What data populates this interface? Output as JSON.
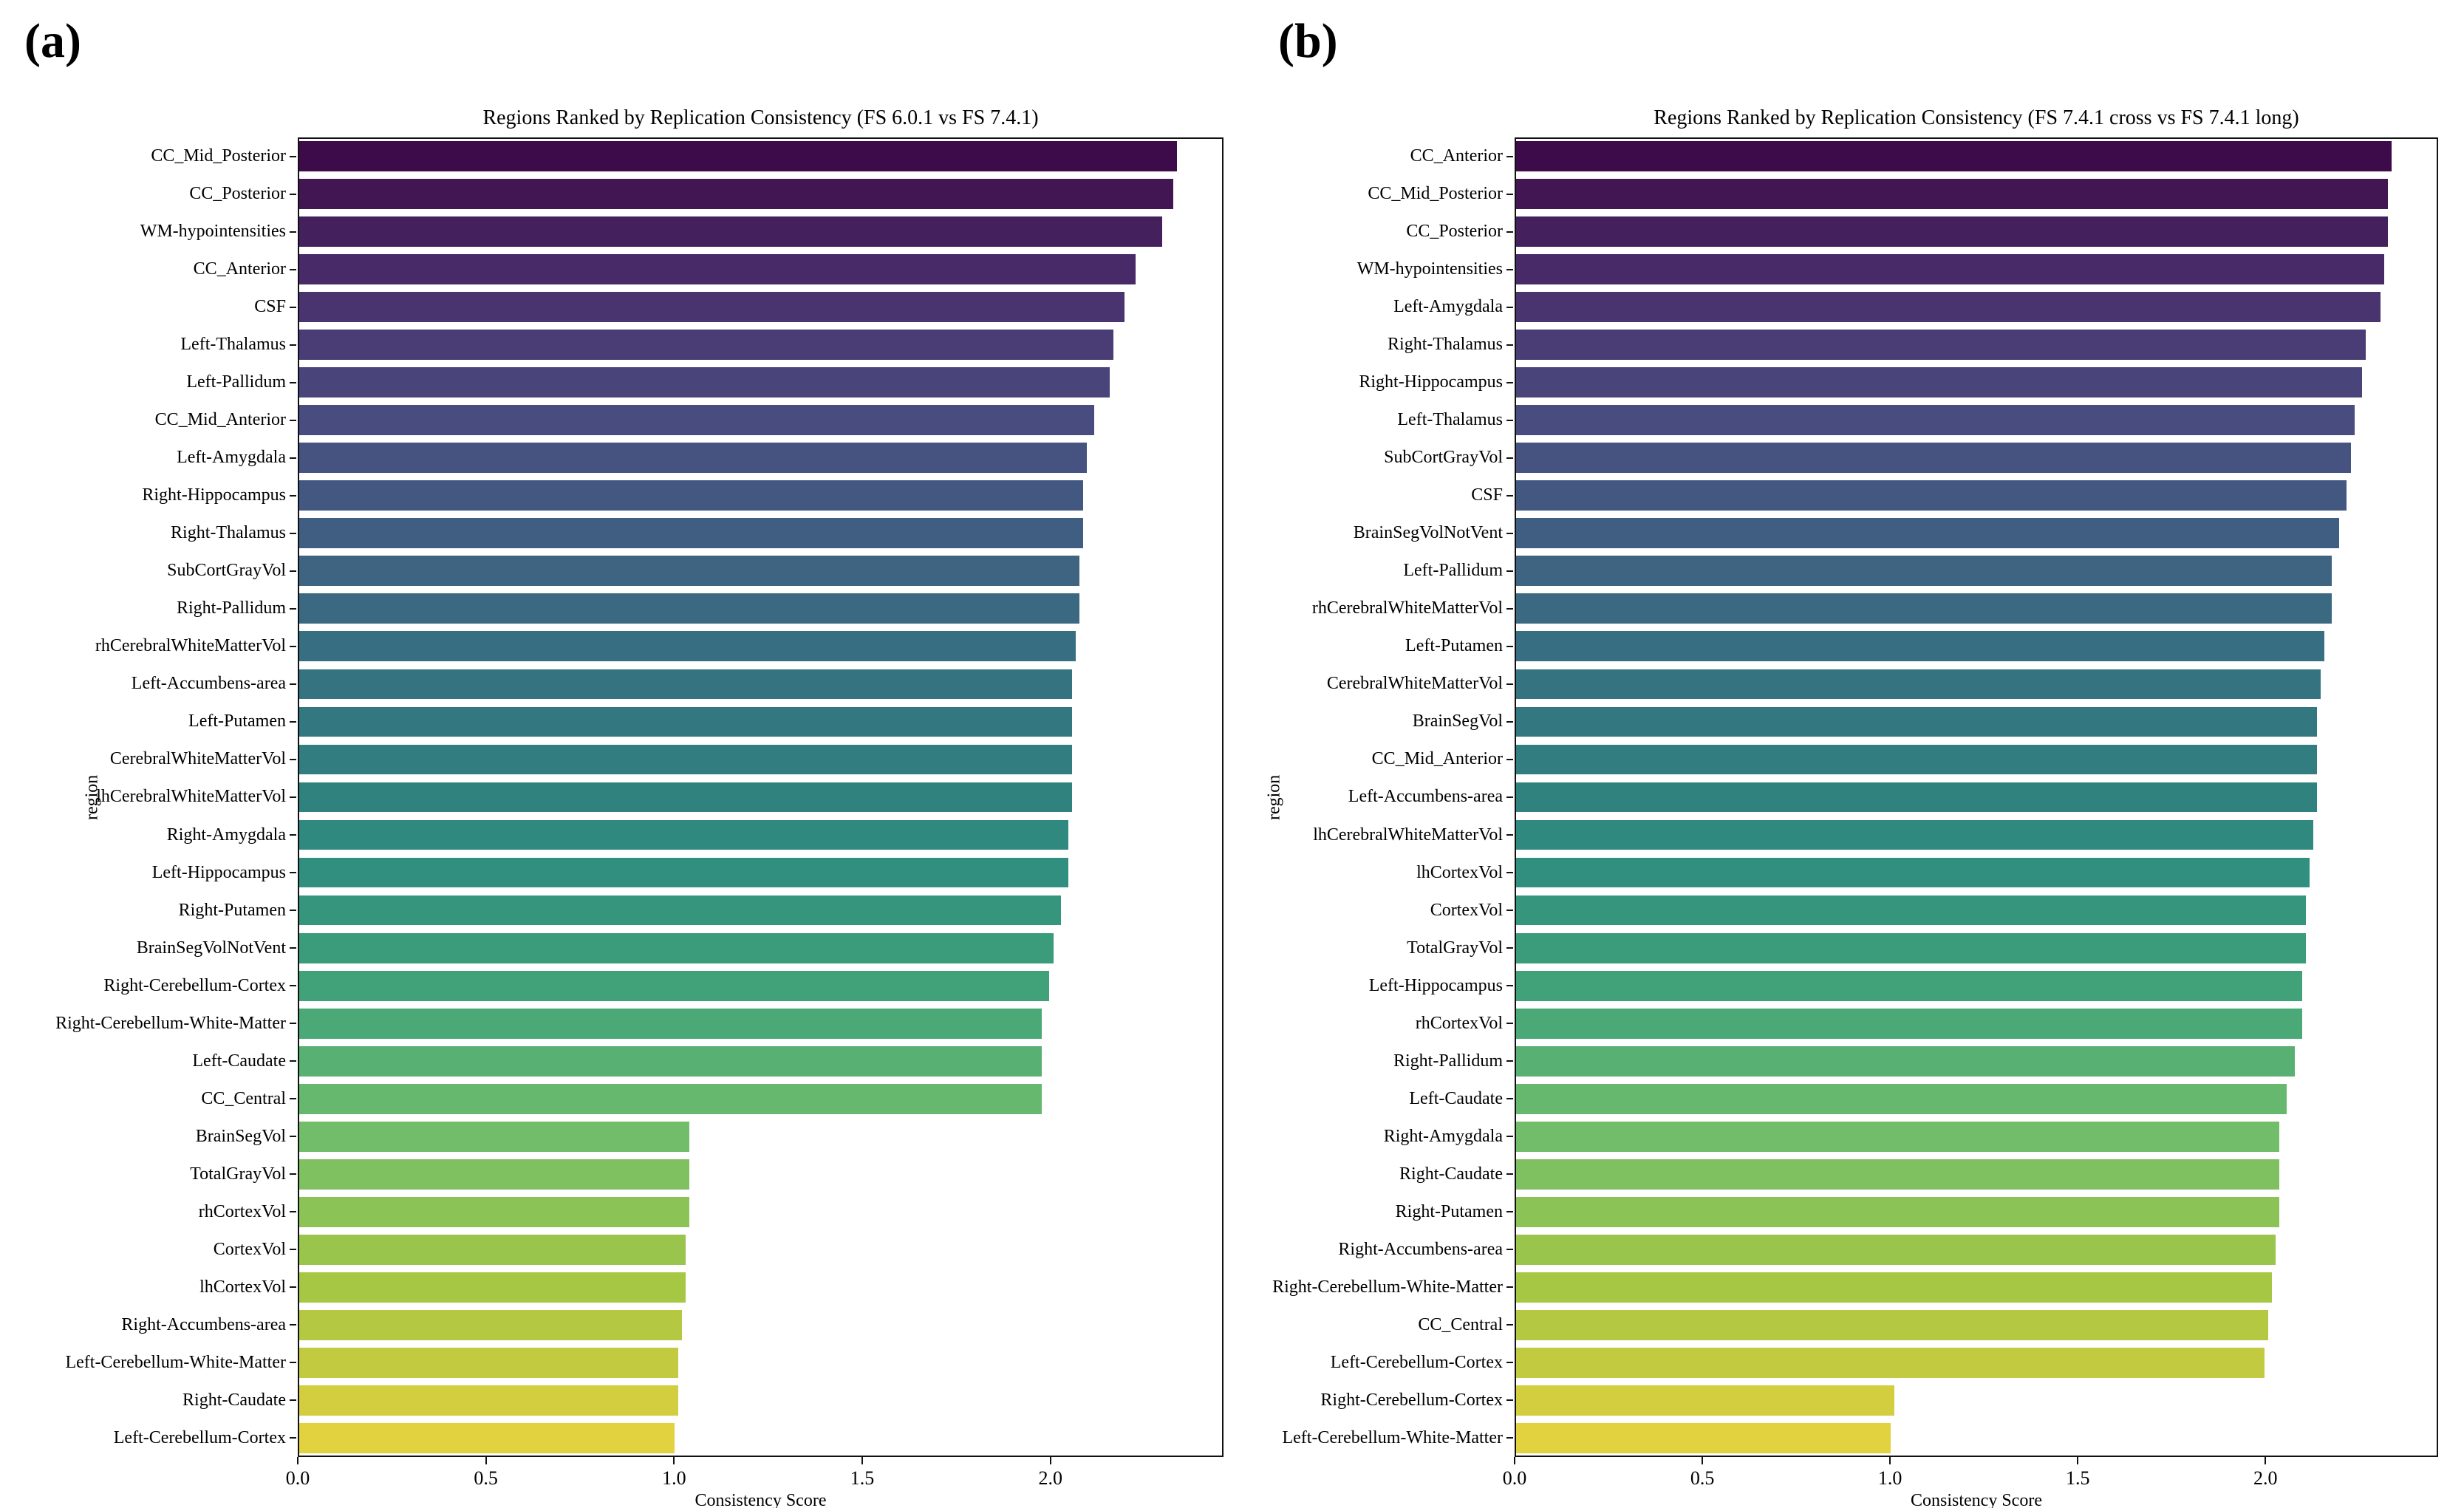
{
  "figure": {
    "background_color": "#ffffff",
    "spine_color": "#111111",
    "text_color": "#000000",
    "palette": {
      "name": "viridis",
      "desaturation": 0.75,
      "stops": [
        "#440154",
        "#482878",
        "#3e4989",
        "#31688e",
        "#26828e",
        "#1f9e89",
        "#35b779",
        "#6ece58",
        "#b5de2b",
        "#fde725"
      ]
    },
    "panel_a_corner_label": "(a)",
    "panel_b_corner_label": "(b)"
  },
  "chart_data": [
    {
      "type": "bar",
      "orientation": "horizontal",
      "panel_label": "(a)",
      "title": "Regions Ranked by Replication Consistency (FS 6.0.1 vs FS 7.4.1)",
      "xlabel": "Consistency Score",
      "ylabel": "region",
      "xlim": [
        0,
        2.46
      ],
      "xticks": [
        0.0,
        0.5,
        1.0,
        1.5,
        2.0
      ],
      "xtick_labels": [
        "0.0",
        "0.5",
        "1.0",
        "1.5",
        "2.0"
      ],
      "grid": false,
      "legend": null,
      "categories": [
        "CC_Mid_Posterior",
        "CC_Posterior",
        "WM-hypointensities",
        "CC_Anterior",
        "CSF",
        "Left-Thalamus",
        "Left-Pallidum",
        "CC_Mid_Anterior",
        "Left-Amygdala",
        "Right-Hippocampus",
        "Right-Thalamus",
        "SubCortGrayVol",
        "Right-Pallidum",
        "rhCerebralWhiteMatterVol",
        "Left-Accumbens-area",
        "Left-Putamen",
        "CerebralWhiteMatterVol",
        "lhCerebralWhiteMatterVol",
        "Right-Amygdala",
        "Left-Hippocampus",
        "Right-Putamen",
        "BrainSegVolNotVent",
        "Right-Cerebellum-Cortex",
        "Right-Cerebellum-White-Matter",
        "Left-Caudate",
        "CC_Central",
        "BrainSegVol",
        "TotalGrayVol",
        "rhCortexVol",
        "CortexVol",
        "lhCortexVol",
        "Right-Accumbens-area",
        "Left-Cerebellum-White-Matter",
        "Right-Caudate",
        "Left-Cerebellum-Cortex"
      ],
      "values": [
        2.34,
        2.33,
        2.3,
        2.23,
        2.2,
        2.17,
        2.16,
        2.12,
        2.1,
        2.09,
        2.09,
        2.08,
        2.08,
        2.07,
        2.06,
        2.06,
        2.06,
        2.06,
        2.05,
        2.05,
        2.03,
        2.01,
        2.0,
        1.98,
        1.98,
        1.98,
        1.04,
        1.04,
        1.04,
        1.03,
        1.03,
        1.02,
        1.01,
        1.01,
        1.0
      ]
    },
    {
      "type": "bar",
      "orientation": "horizontal",
      "panel_label": "(b)",
      "title": "Regions Ranked by Replication Consistency (FS 7.4.1 cross vs FS 7.4.1 long)",
      "xlabel": "Consistency Score",
      "ylabel": "region",
      "xlim": [
        0,
        2.46
      ],
      "xticks": [
        0.0,
        0.5,
        1.0,
        1.5,
        2.0
      ],
      "xtick_labels": [
        "0.0",
        "0.5",
        "1.0",
        "1.5",
        "2.0"
      ],
      "grid": false,
      "legend": null,
      "categories": [
        "CC_Anterior",
        "CC_Mid_Posterior",
        "CC_Posterior",
        "WM-hypointensities",
        "Left-Amygdala",
        "Right-Thalamus",
        "Right-Hippocampus",
        "Left-Thalamus",
        "SubCortGrayVol",
        "CSF",
        "BrainSegVolNotVent",
        "Left-Pallidum",
        "rhCerebralWhiteMatterVol",
        "Left-Putamen",
        "CerebralWhiteMatterVol",
        "BrainSegVol",
        "CC_Mid_Anterior",
        "Left-Accumbens-area",
        "lhCerebralWhiteMatterVol",
        "lhCortexVol",
        "CortexVol",
        "TotalGrayVol",
        "Left-Hippocampus",
        "rhCortexVol",
        "Right-Pallidum",
        "Left-Caudate",
        "Right-Amygdala",
        "Right-Caudate",
        "Right-Putamen",
        "Right-Accumbens-area",
        "Right-Cerebellum-White-Matter",
        "CC_Central",
        "Left-Cerebellum-Cortex",
        "Right-Cerebellum-Cortex",
        "Left-Cerebellum-White-Matter"
      ],
      "values": [
        2.34,
        2.33,
        2.33,
        2.32,
        2.31,
        2.27,
        2.26,
        2.24,
        2.23,
        2.22,
        2.2,
        2.18,
        2.18,
        2.16,
        2.15,
        2.14,
        2.14,
        2.14,
        2.13,
        2.12,
        2.11,
        2.11,
        2.1,
        2.1,
        2.08,
        2.06,
        2.04,
        2.04,
        2.04,
        2.03,
        2.02,
        2.01,
        2.0,
        1.01,
        1.0
      ]
    }
  ]
}
